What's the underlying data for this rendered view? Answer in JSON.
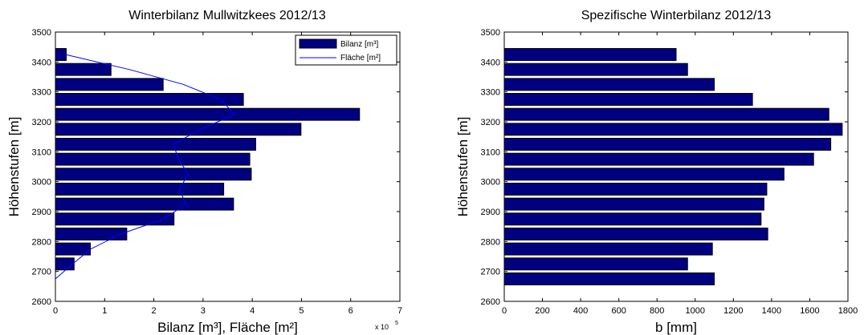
{
  "chart_data": [
    {
      "type": "bar",
      "orientation": "horizontal",
      "title": "Winterbilanz Mullwitzkees 2012/13",
      "xlabel": "Bilanz [m³], Fläche [m²]",
      "ylabel": "Höhenstufen [m]",
      "x_multiplier": "x 10",
      "x_multiplier_exp": "5",
      "xlim": [
        0,
        7
      ],
      "ylim": [
        2600,
        3500
      ],
      "xticks": [
        0,
        1,
        2,
        3,
        4,
        5,
        6,
        7
      ],
      "yticks": [
        2600,
        2700,
        2800,
        2900,
        3000,
        3100,
        3200,
        3300,
        3400,
        3500
      ],
      "legend": {
        "position": "top-right",
        "entries": [
          "Bilanz [m³]",
          "Fläche [m²]"
        ]
      },
      "colors": {
        "bar": "#000080",
        "line": "#0000ff"
      },
      "series": [
        {
          "name": "Bilanz [m³]",
          "kind": "bar",
          "categories": [
            2675,
            2725,
            2775,
            2825,
            2875,
            2925,
            2975,
            3025,
            3075,
            3125,
            3175,
            3225,
            3275,
            3325,
            3375,
            3425
          ],
          "values": [
            0,
            0.38,
            0.71,
            1.45,
            2.41,
            3.62,
            3.42,
            3.98,
            3.95,
            4.07,
            4.99,
            6.18,
            3.82,
            2.19,
            1.13,
            0.22
          ]
        },
        {
          "name": "Fläche [m²]",
          "kind": "line",
          "points": [
            [
              0.0,
              2675
            ],
            [
              0.35,
              2725
            ],
            [
              0.72,
              2775
            ],
            [
              1.33,
              2825
            ],
            [
              2.2,
              2875
            ],
            [
              2.65,
              2925
            ],
            [
              2.52,
              2975
            ],
            [
              2.7,
              3025
            ],
            [
              2.5,
              3075
            ],
            [
              2.4,
              3125
            ],
            [
              2.95,
              3175
            ],
            [
              3.65,
              3225
            ],
            [
              3.35,
              3275
            ],
            [
              2.6,
              3325
            ],
            [
              1.5,
              3375
            ],
            [
              0.2,
              3425
            ]
          ]
        }
      ]
    },
    {
      "type": "bar",
      "orientation": "horizontal",
      "title": "Spezifische Winterbilanz 2012/13",
      "xlabel": "b [mm]",
      "ylabel": "Höhenstufen [m]",
      "xlim": [
        0,
        1800
      ],
      "ylim": [
        2600,
        3500
      ],
      "xticks": [
        0,
        200,
        400,
        600,
        800,
        1000,
        1200,
        1400,
        1600,
        1800
      ],
      "yticks": [
        2600,
        2700,
        2800,
        2900,
        3000,
        3100,
        3200,
        3300,
        3400,
        3500
      ],
      "colors": {
        "bar": "#000080"
      },
      "categories": [
        2675,
        2725,
        2775,
        2825,
        2875,
        2925,
        2975,
        3025,
        3075,
        3125,
        3175,
        3225,
        3275,
        3325,
        3375,
        3425
      ],
      "values": [
        1100,
        960,
        1090,
        1380,
        1345,
        1360,
        1375,
        1465,
        1620,
        1710,
        1770,
        1700,
        1300,
        1100,
        960,
        900
      ]
    }
  ]
}
